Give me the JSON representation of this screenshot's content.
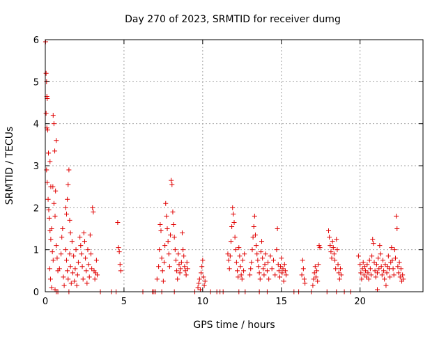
{
  "chart_data": {
    "type": "scatter",
    "title": "Day 270 of 2023, SRMTID for receiver dumg",
    "xlabel": "GPS time / hours",
    "ylabel": "SRMTID / TECUs",
    "xlim": [
      0,
      24
    ],
    "ylim": [
      0,
      6
    ],
    "xticks": [
      0,
      5,
      10,
      15,
      20
    ],
    "yticks": [
      0,
      1,
      2,
      3,
      4,
      5,
      6
    ],
    "xtick_labels": [
      "0",
      "5",
      "10",
      "15",
      "20"
    ],
    "ytick_labels": [
      "0",
      "1",
      "2",
      "3",
      "4",
      "5",
      "6"
    ],
    "grid": true,
    "marker": "+",
    "color": "#e00000",
    "series": [
      {
        "name": "SRMTID",
        "points": [
          [
            0.02,
            5.95
          ],
          [
            0.05,
            5.2
          ],
          [
            0.08,
            5.0
          ],
          [
            0.1,
            4.65
          ],
          [
            0.12,
            4.6
          ],
          [
            0.05,
            4.25
          ],
          [
            0.1,
            3.9
          ],
          [
            0.15,
            3.85
          ],
          [
            0.2,
            3.3
          ],
          [
            0.3,
            3.1
          ],
          [
            0.35,
            2.5
          ],
          [
            0.08,
            2.9
          ],
          [
            0.12,
            2.6
          ],
          [
            0.18,
            2.2
          ],
          [
            0.22,
            1.95
          ],
          [
            0.25,
            1.75
          ],
          [
            0.3,
            1.45
          ],
          [
            0.35,
            1.25
          ],
          [
            0.4,
            1.5
          ],
          [
            0.45,
            0.95
          ],
          [
            0.5,
            0.75
          ],
          [
            0.28,
            0.55
          ],
          [
            0.33,
            0.3
          ],
          [
            0.4,
            0.1
          ],
          [
            0.5,
            4.2
          ],
          [
            0.55,
            4.0
          ],
          [
            0.6,
            3.35
          ],
          [
            0.65,
            2.4
          ],
          [
            0.7,
            3.6
          ],
          [
            0.48,
            2.5
          ],
          [
            0.55,
            2.1
          ],
          [
            0.62,
            1.8
          ],
          [
            0.7,
            1.1
          ],
          [
            0.75,
            0.8
          ],
          [
            0.8,
            0.5
          ],
          [
            0.62,
            0.05
          ],
          [
            0.7,
            0.0
          ],
          [
            0.8,
            0.0
          ],
          [
            0.9,
            0.55
          ],
          [
            1.0,
            0.9
          ],
          [
            1.05,
            1.3
          ],
          [
            1.1,
            1.5
          ],
          [
            1.15,
            0.35
          ],
          [
            1.2,
            0.15
          ],
          [
            1.3,
            2.0
          ],
          [
            1.35,
            1.85
          ],
          [
            1.4,
            2.2
          ],
          [
            1.45,
            2.55
          ],
          [
            1.5,
            2.9
          ],
          [
            1.55,
            1.7
          ],
          [
            1.6,
            1.4
          ],
          [
            1.3,
            1.0
          ],
          [
            1.35,
            0.75
          ],
          [
            1.4,
            0.5
          ],
          [
            1.45,
            0.3
          ],
          [
            1.5,
            0.0
          ],
          [
            1.55,
            0.9
          ],
          [
            1.6,
            0.6
          ],
          [
            1.65,
            0.2
          ],
          [
            1.7,
            1.2
          ],
          [
            1.75,
            0.45
          ],
          [
            1.8,
            0.85
          ],
          [
            1.85,
            0.25
          ],
          [
            1.9,
            0.55
          ],
          [
            1.95,
            1.0
          ],
          [
            2.0,
            0.15
          ],
          [
            2.05,
            0.4
          ],
          [
            2.1,
            0.7
          ],
          [
            2.2,
            1.3
          ],
          [
            2.25,
            1.1
          ],
          [
            2.3,
            0.9
          ],
          [
            2.35,
            0.6
          ],
          [
            2.4,
            0.3
          ],
          [
            2.45,
            1.4
          ],
          [
            2.5,
            1.2
          ],
          [
            2.55,
            0.8
          ],
          [
            2.6,
            0.5
          ],
          [
            2.65,
            0.2
          ],
          [
            2.7,
            1.0
          ],
          [
            2.75,
            0.65
          ],
          [
            2.8,
            0.35
          ],
          [
            2.85,
            1.35
          ],
          [
            2.9,
            0.9
          ],
          [
            2.95,
            0.55
          ],
          [
            3.0,
            2.0
          ],
          [
            3.05,
            1.9
          ],
          [
            3.1,
            0.5
          ],
          [
            3.15,
            0.3
          ],
          [
            3.2,
            0.45
          ],
          [
            3.25,
            0.75
          ],
          [
            3.3,
            0.4
          ],
          [
            3.5,
            0.0
          ],
          [
            4.2,
            0.0
          ],
          [
            4.5,
            0.0
          ],
          [
            4.6,
            1.65
          ],
          [
            4.65,
            1.05
          ],
          [
            4.7,
            0.95
          ],
          [
            4.75,
            0.65
          ],
          [
            4.8,
            0.5
          ],
          [
            6.2,
            0.0
          ],
          [
            6.8,
            0.0
          ],
          [
            6.9,
            0.0
          ],
          [
            7.0,
            0.0
          ],
          [
            7.1,
            0.3
          ],
          [
            7.2,
            0.6
          ],
          [
            7.25,
            1.0
          ],
          [
            7.3,
            1.6
          ],
          [
            7.35,
            1.45
          ],
          [
            7.4,
            0.8
          ],
          [
            7.45,
            0.5
          ],
          [
            7.5,
            0.25
          ],
          [
            7.55,
            0.7
          ],
          [
            7.6,
            1.1
          ],
          [
            7.65,
            2.1
          ],
          [
            7.7,
            1.8
          ],
          [
            7.75,
            1.5
          ],
          [
            7.8,
            1.2
          ],
          [
            7.85,
            0.9
          ],
          [
            7.9,
            0.6
          ],
          [
            7.95,
            1.35
          ],
          [
            8.0,
            2.65
          ],
          [
            8.05,
            2.55
          ],
          [
            8.1,
            1.9
          ],
          [
            8.15,
            1.6
          ],
          [
            8.2,
            1.3
          ],
          [
            8.25,
            1.0
          ],
          [
            8.3,
            0.75
          ],
          [
            8.35,
            0.5
          ],
          [
            8.4,
            0.3
          ],
          [
            8.45,
            0.9
          ],
          [
            8.5,
            0.65
          ],
          [
            8.55,
            0.45
          ],
          [
            8.6,
            0.55
          ],
          [
            8.65,
            0.7
          ],
          [
            8.7,
            1.4
          ],
          [
            8.75,
            1.0
          ],
          [
            8.8,
            0.85
          ],
          [
            8.85,
            0.6
          ],
          [
            8.9,
            0.5
          ],
          [
            8.95,
            0.4
          ],
          [
            9.0,
            0.7
          ],
          [
            9.05,
            0.55
          ],
          [
            7.4,
            0.0
          ],
          [
            8.2,
            0.0
          ],
          [
            9.5,
            0.0
          ],
          [
            9.7,
            0.1
          ],
          [
            9.75,
            0.2
          ],
          [
            9.8,
            0.3
          ],
          [
            9.85,
            0.05
          ],
          [
            9.9,
            0.45
          ],
          [
            9.95,
            0.6
          ],
          [
            10.0,
            0.75
          ],
          [
            10.05,
            0.35
          ],
          [
            10.1,
            0.15
          ],
          [
            10.15,
            0.25
          ],
          [
            10.5,
            0.0
          ],
          [
            10.9,
            0.0
          ],
          [
            11.1,
            0.0
          ],
          [
            11.3,
            0.0
          ],
          [
            11.6,
            0.9
          ],
          [
            11.65,
            0.75
          ],
          [
            11.7,
            0.55
          ],
          [
            11.75,
            0.85
          ],
          [
            11.8,
            1.2
          ],
          [
            11.85,
            1.55
          ],
          [
            11.9,
            2.0
          ],
          [
            11.95,
            1.85
          ],
          [
            12.0,
            1.65
          ],
          [
            12.05,
            1.3
          ],
          [
            12.1,
            1.0
          ],
          [
            12.15,
            0.7
          ],
          [
            12.2,
            0.5
          ],
          [
            12.25,
            0.35
          ],
          [
            12.3,
            1.05
          ],
          [
            12.35,
            0.85
          ],
          [
            12.4,
            0.6
          ],
          [
            12.45,
            0.4
          ],
          [
            12.5,
            0.3
          ],
          [
            12.55,
            0.75
          ],
          [
            12.6,
            0.5
          ],
          [
            12.65,
            0.9
          ],
          [
            12.3,
            0.0
          ],
          [
            12.7,
            0.0
          ],
          [
            13.0,
            0.4
          ],
          [
            13.05,
            0.55
          ],
          [
            13.1,
            0.7
          ],
          [
            13.15,
            1.0
          ],
          [
            13.2,
            1.3
          ],
          [
            13.25,
            1.55
          ],
          [
            13.3,
            1.8
          ],
          [
            13.35,
            1.35
          ],
          [
            13.4,
            1.1
          ],
          [
            13.45,
            0.9
          ],
          [
            13.5,
            0.75
          ],
          [
            13.55,
            0.6
          ],
          [
            13.6,
            0.45
          ],
          [
            13.65,
            0.3
          ],
          [
            13.7,
            0.95
          ],
          [
            13.75,
            1.2
          ],
          [
            13.8,
            0.8
          ],
          [
            13.85,
            0.55
          ],
          [
            13.9,
            0.4
          ],
          [
            13.95,
            0.65
          ],
          [
            14.0,
            0.9
          ],
          [
            14.1,
            0.5
          ],
          [
            14.15,
            0.7
          ],
          [
            14.2,
            0.3
          ],
          [
            14.3,
            0.85
          ],
          [
            14.4,
            0.55
          ],
          [
            14.5,
            0.75
          ],
          [
            14.6,
            0.4
          ],
          [
            14.7,
            1.0
          ],
          [
            14.75,
            1.5
          ],
          [
            14.8,
            0.65
          ],
          [
            14.85,
            0.5
          ],
          [
            14.9,
            0.35
          ],
          [
            14.95,
            0.6
          ],
          [
            15.0,
            0.8
          ],
          [
            15.05,
            0.45
          ],
          [
            15.1,
            0.55
          ],
          [
            15.15,
            0.25
          ],
          [
            15.2,
            0.65
          ],
          [
            15.25,
            0.5
          ],
          [
            15.3,
            0.4
          ],
          [
            13.6,
            0.0
          ],
          [
            14.1,
            0.0
          ],
          [
            15.8,
            0.0
          ],
          [
            16.1,
            0.0
          ],
          [
            16.3,
            0.4
          ],
          [
            16.35,
            0.75
          ],
          [
            16.4,
            0.55
          ],
          [
            16.45,
            0.3
          ],
          [
            16.5,
            0.2
          ],
          [
            16.9,
            0.0
          ],
          [
            17.0,
            0.15
          ],
          [
            17.05,
            0.3
          ],
          [
            17.1,
            0.45
          ],
          [
            17.15,
            0.6
          ],
          [
            17.2,
            0.35
          ],
          [
            17.25,
            0.5
          ],
          [
            17.3,
            0.25
          ],
          [
            17.35,
            0.65
          ],
          [
            17.4,
            1.1
          ],
          [
            17.45,
            1.05
          ],
          [
            17.9,
            0.0
          ],
          [
            18.0,
            1.45
          ],
          [
            18.05,
            1.3
          ],
          [
            18.1,
            1.1
          ],
          [
            18.15,
            0.95
          ],
          [
            18.2,
            0.8
          ],
          [
            18.25,
            1.2
          ],
          [
            18.3,
            1.05
          ],
          [
            18.35,
            0.9
          ],
          [
            18.4,
            0.75
          ],
          [
            18.45,
            0.55
          ],
          [
            18.5,
            1.25
          ],
          [
            18.55,
            1.0
          ],
          [
            18.6,
            0.65
          ],
          [
            18.65,
            0.45
          ],
          [
            18.7,
            0.3
          ],
          [
            18.75,
            0.55
          ],
          [
            18.8,
            0.4
          ],
          [
            18.5,
            0.0
          ],
          [
            19.0,
            0.0
          ],
          [
            19.4,
            0.0
          ],
          [
            19.9,
            0.85
          ],
          [
            20.0,
            0.65
          ],
          [
            20.05,
            0.45
          ],
          [
            20.1,
            0.3
          ],
          [
            20.15,
            0.55
          ],
          [
            20.2,
            0.7
          ],
          [
            20.25,
            0.4
          ],
          [
            20.3,
            0.6
          ],
          [
            20.35,
            0.5
          ],
          [
            20.4,
            0.35
          ],
          [
            20.45,
            0.65
          ],
          [
            20.5,
            0.45
          ],
          [
            20.55,
            0.3
          ],
          [
            20.6,
            0.75
          ],
          [
            20.65,
            0.55
          ],
          [
            20.7,
            0.4
          ],
          [
            20.75,
            0.85
          ],
          [
            20.8,
            1.25
          ],
          [
            20.85,
            1.15
          ],
          [
            20.9,
            0.7
          ],
          [
            20.95,
            0.5
          ],
          [
            21.0,
            0.35
          ],
          [
            21.05,
            0.65
          ],
          [
            21.1,
            0.45
          ],
          [
            21.15,
            0.8
          ],
          [
            21.2,
            0.55
          ],
          [
            21.25,
            1.1
          ],
          [
            21.3,
            0.9
          ],
          [
            21.35,
            0.6
          ],
          [
            21.4,
            0.4
          ],
          [
            21.45,
            0.75
          ],
          [
            21.5,
            0.5
          ],
          [
            21.55,
            0.3
          ],
          [
            21.6,
            0.65
          ],
          [
            21.65,
            0.15
          ],
          [
            21.7,
            0.45
          ],
          [
            21.75,
            0.6
          ],
          [
            21.8,
            0.85
          ],
          [
            21.85,
            0.55
          ],
          [
            21.9,
            0.35
          ],
          [
            21.95,
            0.7
          ],
          [
            22.0,
            1.05
          ],
          [
            22.05,
            0.75
          ],
          [
            22.1,
            0.55
          ],
          [
            22.15,
            0.4
          ],
          [
            22.2,
            1.0
          ],
          [
            22.25,
            0.8
          ],
          [
            22.3,
            1.8
          ],
          [
            22.35,
            1.5
          ],
          [
            22.4,
            0.6
          ],
          [
            22.45,
            0.45
          ],
          [
            22.5,
            0.7
          ],
          [
            22.55,
            0.35
          ],
          [
            22.6,
            0.55
          ],
          [
            22.65,
            0.25
          ],
          [
            22.7,
            0.4
          ],
          [
            22.75,
            0.3
          ],
          [
            21.1,
            0.05
          ]
        ]
      }
    ]
  }
}
